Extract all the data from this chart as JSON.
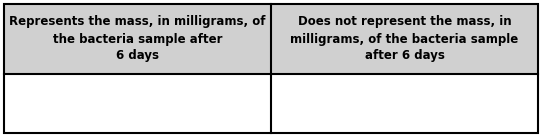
{
  "col1_header": "Represents the mass, in milligrams, of\nthe bacteria sample after\n6 days",
  "col2_header": "Does not represent the mass, in\nmilligrams, of the bacteria sample\nafter 6 days",
  "header_bg": "#d0d0d0",
  "body_bg": "#ffffff",
  "border_color": "#000000",
  "header_fontsize": 8.5,
  "header_fontweight": "bold",
  "figsize": [
    5.42,
    1.37
  ],
  "dpi": 100
}
